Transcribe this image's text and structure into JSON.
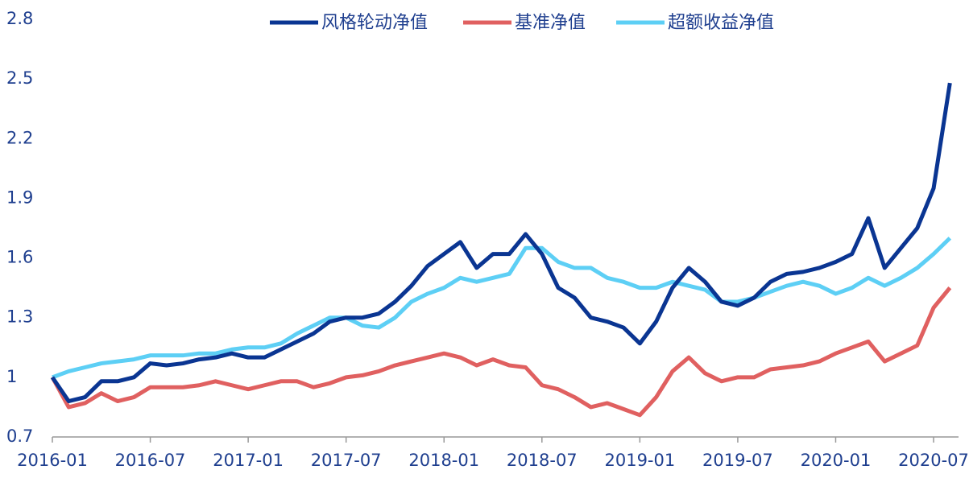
{
  "chart_data": {
    "type": "line",
    "x": [
      "2016-01",
      "2016-02",
      "2016-03",
      "2016-04",
      "2016-05",
      "2016-06",
      "2016-07",
      "2016-08",
      "2016-09",
      "2016-10",
      "2016-11",
      "2016-12",
      "2017-01",
      "2017-02",
      "2017-03",
      "2017-04",
      "2017-05",
      "2017-06",
      "2017-07",
      "2017-08",
      "2017-09",
      "2017-10",
      "2017-11",
      "2017-12",
      "2018-01",
      "2018-02",
      "2018-03",
      "2018-04",
      "2018-05",
      "2018-06",
      "2018-07",
      "2018-08",
      "2018-09",
      "2018-10",
      "2018-11",
      "2018-12",
      "2019-01",
      "2019-02",
      "2019-03",
      "2019-04",
      "2019-05",
      "2019-06",
      "2019-07",
      "2019-08",
      "2019-09",
      "2019-10",
      "2019-11",
      "2019-12",
      "2020-01",
      "2020-02",
      "2020-03",
      "2020-04",
      "2020-05",
      "2020-06",
      "2020-07",
      "2020-08"
    ],
    "series": [
      {
        "name": "风格轮动净值",
        "color": "#0a3592",
        "values": [
          1.0,
          0.88,
          0.9,
          0.98,
          0.98,
          1.0,
          1.07,
          1.06,
          1.07,
          1.09,
          1.1,
          1.12,
          1.1,
          1.1,
          1.14,
          1.18,
          1.22,
          1.28,
          1.3,
          1.3,
          1.32,
          1.38,
          1.46,
          1.56,
          1.62,
          1.68,
          1.55,
          1.62,
          1.62,
          1.72,
          1.62,
          1.45,
          1.4,
          1.3,
          1.28,
          1.25,
          1.17,
          1.28,
          1.45,
          1.55,
          1.48,
          1.38,
          1.36,
          1.4,
          1.48,
          1.52,
          1.53,
          1.55,
          1.58,
          1.62,
          1.8,
          1.55,
          1.65,
          1.75,
          1.95,
          2.48
        ]
      },
      {
        "name": "基准净值",
        "color": "#e06060",
        "values": [
          1.0,
          0.85,
          0.87,
          0.92,
          0.88,
          0.9,
          0.95,
          0.95,
          0.95,
          0.96,
          0.98,
          0.96,
          0.94,
          0.96,
          0.98,
          0.98,
          0.95,
          0.97,
          1.0,
          1.01,
          1.03,
          1.06,
          1.08,
          1.1,
          1.12,
          1.1,
          1.06,
          1.09,
          1.06,
          1.05,
          0.96,
          0.94,
          0.9,
          0.85,
          0.87,
          0.84,
          0.81,
          0.9,
          1.03,
          1.1,
          1.02,
          0.98,
          1.0,
          1.0,
          1.04,
          1.05,
          1.06,
          1.08,
          1.12,
          1.15,
          1.18,
          1.08,
          1.12,
          1.16,
          1.35,
          1.45
        ]
      },
      {
        "name": "超额收益净值",
        "color": "#5dcff5",
        "values": [
          1.0,
          1.03,
          1.05,
          1.07,
          1.08,
          1.09,
          1.11,
          1.11,
          1.11,
          1.12,
          1.12,
          1.14,
          1.15,
          1.15,
          1.17,
          1.22,
          1.26,
          1.3,
          1.3,
          1.26,
          1.25,
          1.3,
          1.38,
          1.42,
          1.45,
          1.5,
          1.48,
          1.5,
          1.52,
          1.65,
          1.65,
          1.58,
          1.55,
          1.55,
          1.5,
          1.48,
          1.45,
          1.45,
          1.48,
          1.46,
          1.44,
          1.38,
          1.38,
          1.4,
          1.43,
          1.46,
          1.48,
          1.46,
          1.42,
          1.45,
          1.5,
          1.46,
          1.5,
          1.55,
          1.62,
          1.7
        ]
      }
    ],
    "xticks": [
      "2016-01",
      "2016-07",
      "2017-01",
      "2017-07",
      "2018-01",
      "2018-07",
      "2019-01",
      "2019-07",
      "2020-01",
      "2020-07"
    ],
    "ylim": [
      0.7,
      2.8
    ],
    "yticks": [
      0.7,
      1,
      1.3,
      1.6,
      1.9,
      2.2,
      2.5,
      2.8
    ],
    "grid": false,
    "legend": "top"
  }
}
